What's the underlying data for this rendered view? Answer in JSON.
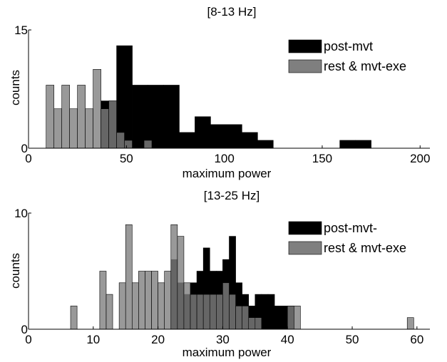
{
  "chart_data": [
    {
      "type": "bar",
      "title": "[8-13 Hz]",
      "xlabel": "maximum power",
      "ylabel": "counts",
      "xlim": [
        0,
        205
      ],
      "ylim": [
        0,
        15
      ],
      "xticks": [
        "0",
        "50",
        "100",
        "150",
        "200"
      ],
      "xtick_values": [
        0,
        50,
        100,
        150,
        200
      ],
      "yticks": [
        "0",
        "15"
      ],
      "ytick_values": [
        0,
        15
      ],
      "bin_width": 8,
      "legend_position": "top-right",
      "series": [
        {
          "name": "post-mvt",
          "color": "#000000",
          "bins": [
            {
              "x0": 37,
              "x1": 45,
              "value": 6
            },
            {
              "x0": 45,
              "x1": 53,
              "value": 13
            },
            {
              "x0": 53,
              "x1": 61,
              "value": 8
            },
            {
              "x0": 61,
              "x1": 69,
              "value": 8
            },
            {
              "x0": 69,
              "x1": 77,
              "value": 8
            },
            {
              "x0": 77,
              "x1": 85,
              "value": 2
            },
            {
              "x0": 85,
              "x1": 93,
              "value": 4
            },
            {
              "x0": 93,
              "x1": 101,
              "value": 3
            },
            {
              "x0": 101,
              "x1": 109,
              "value": 3
            },
            {
              "x0": 109,
              "x1": 117,
              "value": 2
            },
            {
              "x0": 117,
              "x1": 125,
              "value": 1
            },
            {
              "x0": 159,
              "x1": 167,
              "value": 1
            },
            {
              "x0": 167,
              "x1": 175,
              "value": 1
            }
          ]
        },
        {
          "name": "rest & mvt-exe",
          "color": "#7f7f7f",
          "bins": [
            {
              "x0": 9,
              "x1": 13,
              "value": 8
            },
            {
              "x0": 13,
              "x1": 17,
              "value": 5
            },
            {
              "x0": 17,
              "x1": 21,
              "value": 8
            },
            {
              "x0": 21,
              "x1": 25,
              "value": 5
            },
            {
              "x0": 25,
              "x1": 29,
              "value": 8
            },
            {
              "x0": 29,
              "x1": 33,
              "value": 5
            },
            {
              "x0": 33,
              "x1": 37,
              "value": 10
            },
            {
              "x0": 37,
              "x1": 41,
              "value": 5
            },
            {
              "x0": 41,
              "x1": 45,
              "value": 6
            },
            {
              "x0": 45,
              "x1": 49,
              "value": 2
            },
            {
              "x0": 49,
              "x1": 53,
              "value": 1
            },
            {
              "x0": 59,
              "x1": 63,
              "value": 1
            }
          ]
        }
      ]
    },
    {
      "type": "bar",
      "title": "[13-25 Hz]",
      "xlabel": "maximum power",
      "ylabel": "counts",
      "xlim": [
        0,
        62
      ],
      "ylim": [
        0,
        10
      ],
      "xticks": [
        "0",
        "10",
        "20",
        "30",
        "40",
        "50",
        "60"
      ],
      "xtick_values": [
        0,
        10,
        20,
        30,
        40,
        50,
        60
      ],
      "yticks": [
        "0",
        "10"
      ],
      "ytick_values": [
        0,
        10
      ],
      "bin_width": 1,
      "legend_position": "top-right",
      "series": [
        {
          "name": "post-mvt-",
          "color": "#000000",
          "bins": [
            {
              "x0": 22,
              "x1": 23,
              "value": 6
            },
            {
              "x0": 23,
              "x1": 24,
              "value": 4
            },
            {
              "x0": 24,
              "x1": 25,
              "value": 3
            },
            {
              "x0": 25,
              "x1": 26,
              "value": 4
            },
            {
              "x0": 26,
              "x1": 27,
              "value": 5
            },
            {
              "x0": 27,
              "x1": 28,
              "value": 7
            },
            {
              "x0": 28,
              "x1": 29,
              "value": 5
            },
            {
              "x0": 29,
              "x1": 30,
              "value": 5
            },
            {
              "x0": 30,
              "x1": 31,
              "value": 6
            },
            {
              "x0": 31,
              "x1": 32,
              "value": 8
            },
            {
              "x0": 32,
              "x1": 33,
              "value": 4
            },
            {
              "x0": 33,
              "x1": 34,
              "value": 3
            },
            {
              "x0": 34,
              "x1": 35,
              "value": 2
            },
            {
              "x0": 35,
              "x1": 36,
              "value": 3
            },
            {
              "x0": 36,
              "x1": 37,
              "value": 3
            },
            {
              "x0": 37,
              "x1": 38,
              "value": 3
            },
            {
              "x0": 38,
              "x1": 39,
              "value": 2
            },
            {
              "x0": 39,
              "x1": 40,
              "value": 2
            },
            {
              "x0": 40,
              "x1": 41,
              "value": 2
            }
          ]
        },
        {
          "name": "rest & mvt-exe",
          "color": "#7f7f7f",
          "bins": [
            {
              "x0": 6.5,
              "x1": 7.5,
              "value": 2
            },
            {
              "x0": 11,
              "x1": 12,
              "value": 5
            },
            {
              "x0": 12,
              "x1": 13,
              "value": 3
            },
            {
              "x0": 14,
              "x1": 15,
              "value": 4
            },
            {
              "x0": 15,
              "x1": 16,
              "value": 9
            },
            {
              "x0": 16,
              "x1": 17,
              "value": 4
            },
            {
              "x0": 17,
              "x1": 18,
              "value": 5
            },
            {
              "x0": 18,
              "x1": 19,
              "value": 5
            },
            {
              "x0": 19,
              "x1": 20,
              "value": 5
            },
            {
              "x0": 20,
              "x1": 21,
              "value": 4
            },
            {
              "x0": 21,
              "x1": 22,
              "value": 5
            },
            {
              "x0": 22,
              "x1": 23,
              "value": 9
            },
            {
              "x0": 23,
              "x1": 24,
              "value": 8
            },
            {
              "x0": 24,
              "x1": 25,
              "value": 4
            },
            {
              "x0": 25,
              "x1": 26,
              "value": 3
            },
            {
              "x0": 26,
              "x1": 27,
              "value": 3
            },
            {
              "x0": 27,
              "x1": 28,
              "value": 3
            },
            {
              "x0": 28,
              "x1": 29,
              "value": 3
            },
            {
              "x0": 29,
              "x1": 30,
              "value": 3
            },
            {
              "x0": 30,
              "x1": 31,
              "value": 4
            },
            {
              "x0": 31,
              "x1": 32,
              "value": 3
            },
            {
              "x0": 32,
              "x1": 33,
              "value": 2
            },
            {
              "x0": 33,
              "x1": 34,
              "value": 2
            },
            {
              "x0": 34,
              "x1": 35,
              "value": 1
            },
            {
              "x0": 35,
              "x1": 36,
              "value": 1
            },
            {
              "x0": 40,
              "x1": 41,
              "value": 2
            },
            {
              "x0": 41,
              "x1": 42,
              "value": 2
            },
            {
              "x0": 58.5,
              "x1": 59.5,
              "value": 1
            }
          ]
        }
      ]
    }
  ]
}
